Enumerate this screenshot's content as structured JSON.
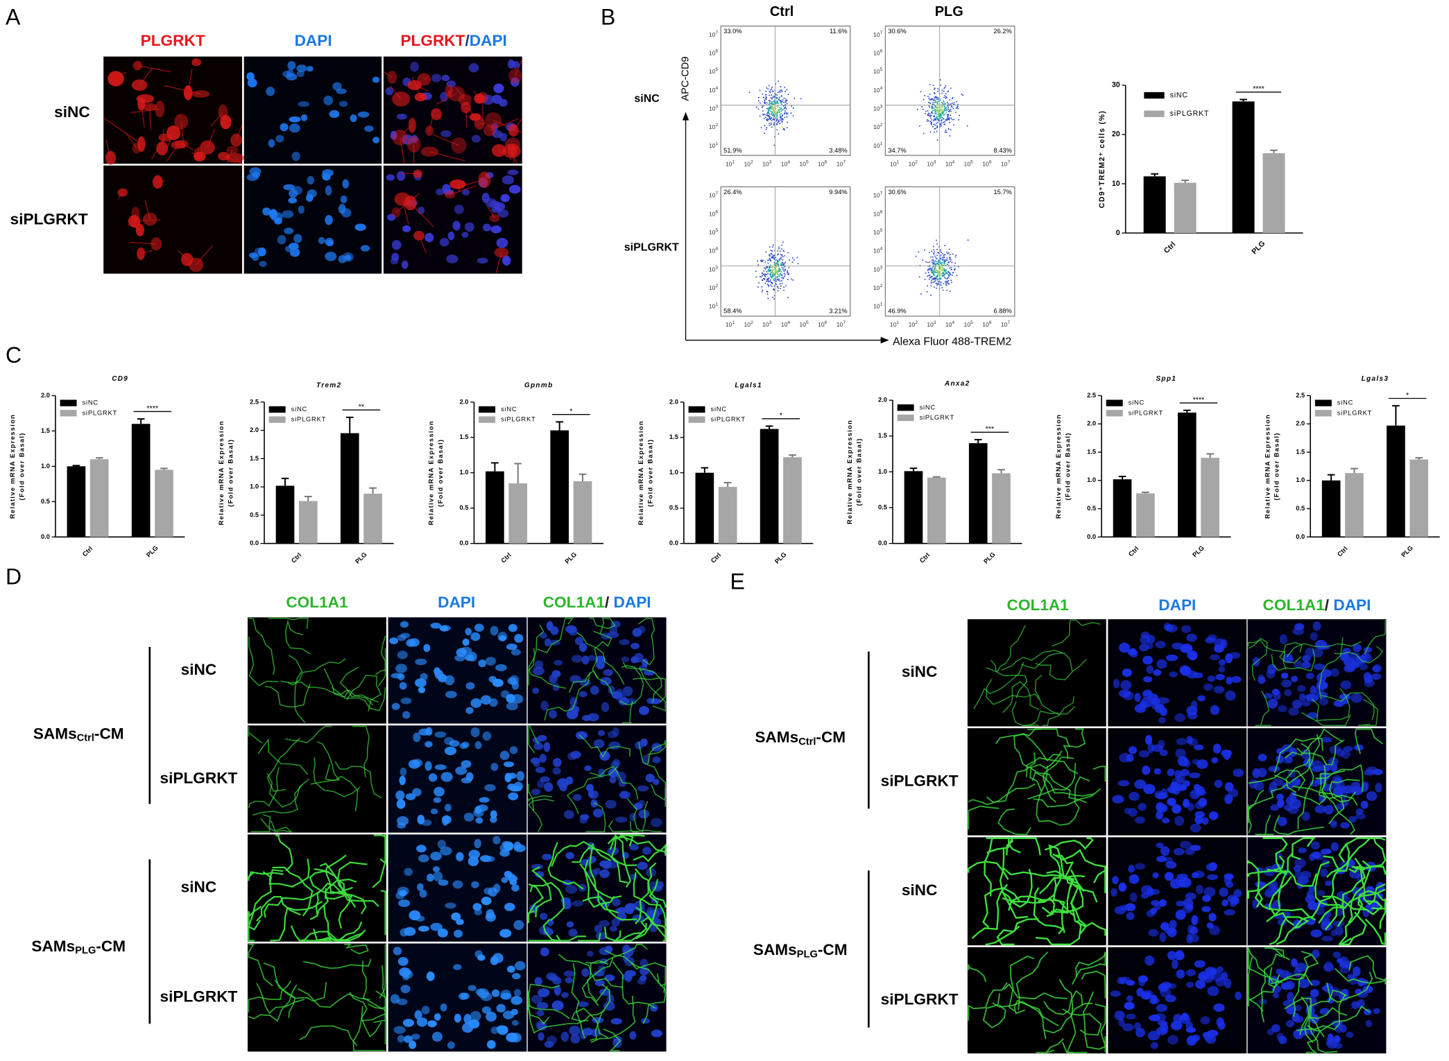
{
  "panel_a": {
    "label": "A",
    "columns": [
      [
        {
          "text": "PLGRKT",
          "color": "#e8141b"
        }
      ],
      [
        {
          "text": "DAPI",
          "color": "#1a78e6"
        }
      ],
      [
        {
          "text": "PLGRKT",
          "color": "#e8141b"
        },
        {
          "text": "/",
          "color": "#1a3a8a"
        },
        {
          "text": "DAPI",
          "color": "#1a78e6"
        }
      ]
    ],
    "rows": [
      "siNC",
      "siPLGRKT"
    ]
  },
  "panel_b": {
    "label": "B",
    "columns": [
      "Ctrl",
      "PLG"
    ],
    "rows": [
      "siNC",
      "siPLGRKT"
    ],
    "y_axis": "APC-CD9",
    "x_axis": "Alexa Fluor 488-TREM2",
    "tick_base": "10",
    "tick_exponents": [
      "1",
      "2",
      "3",
      "4",
      "5",
      "6",
      "7"
    ],
    "quadrants": [
      [
        "33.0%",
        "11.6%",
        "51.9%",
        "3.48%"
      ],
      [
        "30.6%",
        "26.2%",
        "34.7%",
        "8.43%"
      ],
      [
        "26.4%",
        "9.94%",
        "58.4%",
        "3.21%"
      ],
      [
        "30.6%",
        "15.7%",
        "46.9%",
        "6.88%"
      ]
    ]
  },
  "panel_c": {
    "label": "C"
  },
  "panel_d": {
    "label": "D",
    "columns": [
      [
        {
          "text": "COL1A1",
          "color": "#2cb52c"
        }
      ],
      [
        {
          "text": "DAPI",
          "color": "#1a78e6"
        }
      ],
      [
        {
          "text": "COL1A1",
          "color": "#2cb52c"
        },
        {
          "text": "/ ",
          "color": "#222222"
        },
        {
          "text": "DAPI",
          "color": "#1a78e6"
        }
      ]
    ],
    "groups": [
      {
        "name": {
          "main": "SAMs",
          "sub": "Ctrl",
          "suffix": "-CM"
        },
        "rows": [
          "siNC",
          "siPLGRKT"
        ]
      },
      {
        "name": {
          "main": "SAMs",
          "sub": "PLG",
          "suffix": "-CM"
        },
        "rows": [
          "siNC",
          "siPLGRKT"
        ]
      }
    ]
  },
  "panel_e": {
    "label": "E",
    "columns": [
      [
        {
          "text": "COL1A1",
          "color": "#2cb52c"
        }
      ],
      [
        {
          "text": "DAPI",
          "color": "#1a78e6"
        }
      ],
      [
        {
          "text": "COL1A1",
          "color": "#2cb52c"
        },
        {
          "text": "/ ",
          "color": "#222222"
        },
        {
          "text": "DAPI",
          "color": "#1a78e6"
        }
      ]
    ],
    "groups": [
      {
        "name": {
          "main": "SAMs",
          "sub": "Ctrl",
          "suffix": "-CM"
        },
        "rows": [
          "siNC",
          "siPLGRKT"
        ]
      },
      {
        "name": {
          "main": "SAMs",
          "sub": "PLG",
          "suffix": "-CM"
        },
        "rows": [
          "siNC",
          "siPLGRKT"
        ]
      }
    ]
  },
  "chart_data": [
    {
      "type": "bar",
      "ylabel": "CD9⁺TREM2⁺ cells (%)",
      "categories": [
        "Ctrl",
        "PLG"
      ],
      "series": [
        {
          "name": "siNC",
          "color": "#000000",
          "values": [
            11.5,
            26.7
          ],
          "errors": [
            0.5,
            0.4
          ]
        },
        {
          "name": "siPLGRKT",
          "color": "#a6a6a6",
          "values": [
            10.2,
            16.2
          ],
          "errors": [
            0.5,
            0.6
          ]
        }
      ],
      "ylim": [
        0,
        30
      ],
      "yticks": [
        0,
        10,
        20,
        30
      ],
      "significance": "****"
    },
    {
      "type": "bar",
      "title": "CD9",
      "ylabel": [
        "Relative mRNA Expression",
        "(Fold over Basal)"
      ],
      "categories": [
        "Ctrl",
        "PLG"
      ],
      "series": [
        {
          "name": "siNC",
          "color": "#000000",
          "values": [
            1.0,
            1.6
          ],
          "errors": [
            0.01,
            0.07
          ]
        },
        {
          "name": "siPLGRKT",
          "color": "#a6a6a6",
          "values": [
            1.1,
            0.95
          ],
          "errors": [
            0.02,
            0.02
          ]
        }
      ],
      "ylim": [
        0,
        2
      ],
      "yticks": [
        {
          "value": 0,
          "label": "0.0"
        },
        0.5,
        {
          "value": 1,
          "label": "1.0"
        },
        1.5,
        {
          "value": 2,
          "label": "2.0"
        }
      ],
      "significance": "****"
    },
    {
      "type": "bar",
      "title": "Trem2",
      "ylabel": [
        "Relative mRNA Expression",
        "(Fold over Basal)"
      ],
      "categories": [
        "Ctrl",
        "PLG"
      ],
      "series": [
        {
          "name": "siNC",
          "color": "#000000",
          "values": [
            1.02,
            1.95
          ],
          "errors": [
            0.13,
            0.28
          ]
        },
        {
          "name": "siPLGRKT",
          "color": "#a6a6a6",
          "values": [
            0.75,
            0.88
          ],
          "errors": [
            0.08,
            0.1
          ]
        }
      ],
      "ylim": [
        0,
        2.5
      ],
      "yticks": [
        {
          "value": 0,
          "label": "0.0"
        },
        0.5,
        {
          "value": 1,
          "label": "1.0"
        },
        1.5,
        {
          "value": 2,
          "label": "2.0"
        },
        2.5
      ],
      "significance": "**"
    },
    {
      "type": "bar",
      "title": "Gpnmb",
      "ylabel": [
        "Relative mRNA Expression",
        "(Fold over Basal)"
      ],
      "categories": [
        "Ctrl",
        "PLG"
      ],
      "series": [
        {
          "name": "siNC",
          "color": "#000000",
          "values": [
            1.02,
            1.6
          ],
          "errors": [
            0.12,
            0.12
          ]
        },
        {
          "name": "siPLGRKT",
          "color": "#a6a6a6",
          "values": [
            0.85,
            0.88
          ],
          "errors": [
            0.28,
            0.1
          ]
        }
      ],
      "ylim": [
        0,
        2
      ],
      "yticks": [
        {
          "value": 0,
          "label": "0.0"
        },
        0.5,
        {
          "value": 1,
          "label": "1.0"
        },
        1.5,
        {
          "value": 2,
          "label": "2.0"
        }
      ],
      "significance": "*"
    },
    {
      "type": "bar",
      "title": "Lgals1",
      "ylabel": [
        "Relative mRNA Expression",
        "(Fold over Basal)"
      ],
      "categories": [
        "Ctrl",
        "PLG"
      ],
      "series": [
        {
          "name": "siNC",
          "color": "#000000",
          "values": [
            1.0,
            1.62
          ],
          "errors": [
            0.07,
            0.04
          ]
        },
        {
          "name": "siPLGRKT",
          "color": "#a6a6a6",
          "values": [
            0.8,
            1.22
          ],
          "errors": [
            0.06,
            0.03
          ]
        }
      ],
      "ylim": [
        0,
        2
      ],
      "yticks": [
        {
          "value": 0,
          "label": "0.0"
        },
        0.5,
        {
          "value": 1,
          "label": "1.0"
        },
        1.5,
        {
          "value": 2,
          "label": "2.0"
        }
      ],
      "significance": "*"
    },
    {
      "type": "bar",
      "title": "Anxa2",
      "ylabel": [
        "Relative mRNA Expression",
        "(Fold over Basal)"
      ],
      "categories": [
        "Ctrl",
        "PLG"
      ],
      "series": [
        {
          "name": "siNC",
          "color": "#000000",
          "values": [
            1.01,
            1.4
          ],
          "errors": [
            0.04,
            0.05
          ]
        },
        {
          "name": "siPLGRKT",
          "color": "#a6a6a6",
          "values": [
            0.92,
            0.98
          ],
          "errors": [
            0.01,
            0.05
          ]
        }
      ],
      "ylim": [
        0,
        2
      ],
      "yticks": [
        {
          "value": 0,
          "label": "0.0"
        },
        0.5,
        {
          "value": 1,
          "label": "1.0"
        },
        1.5,
        {
          "value": 2,
          "label": "2.0"
        }
      ],
      "significance": "***"
    },
    {
      "type": "bar",
      "title": "Spp1",
      "ylabel": [
        "Relative mRNA Expression",
        "(Fold over Basal)"
      ],
      "categories": [
        "Ctrl",
        "PLG"
      ],
      "series": [
        {
          "name": "siNC",
          "color": "#000000",
          "values": [
            1.02,
            2.2
          ],
          "errors": [
            0.05,
            0.04
          ]
        },
        {
          "name": "siPLGRKT",
          "color": "#a6a6a6",
          "values": [
            0.77,
            1.4
          ],
          "errors": [
            0.02,
            0.07
          ]
        }
      ],
      "ylim": [
        0,
        2.5
      ],
      "yticks": [
        {
          "value": 0,
          "label": "0.0"
        },
        0.5,
        {
          "value": 1,
          "label": "1.0"
        },
        1.5,
        {
          "value": 2,
          "label": "2.0"
        },
        2.5
      ],
      "significance": "****"
    },
    {
      "type": "bar",
      "title": "Lgals3",
      "ylabel": [
        "Relative mRNA Expression",
        "(Fold over Basal)"
      ],
      "categories": [
        "Ctrl",
        "PLG"
      ],
      "series": [
        {
          "name": "siNC",
          "color": "#000000",
          "values": [
            1.0,
            1.97
          ],
          "errors": [
            0.1,
            0.35
          ]
        },
        {
          "name": "siPLGRKT",
          "color": "#a6a6a6",
          "values": [
            1.13,
            1.37
          ],
          "errors": [
            0.08,
            0.03
          ]
        }
      ],
      "ylim": [
        0,
        2.5
      ],
      "yticks": [
        {
          "value": 0,
          "label": "0.0"
        },
        0.5,
        {
          "value": 1,
          "label": "1.0"
        },
        1.5,
        {
          "value": 2,
          "label": "2.0"
        },
        2.5
      ],
      "significance": "*"
    }
  ]
}
